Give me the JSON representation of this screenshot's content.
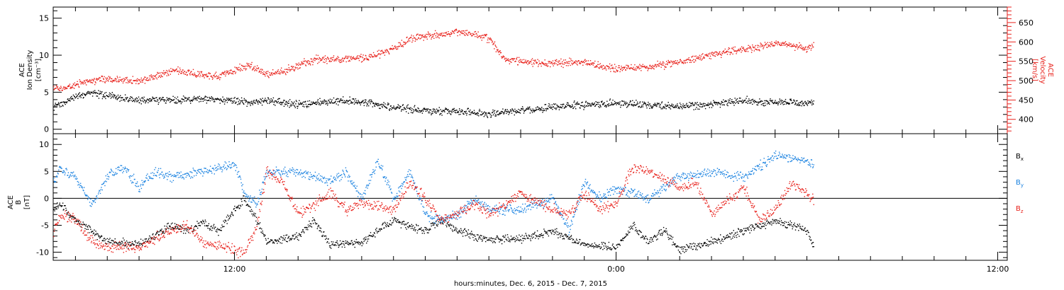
{
  "xaxis": {
    "caption": "hours:minutes, Dec.  6, 2015 - Dec.  7, 2015",
    "start_hour": 6.3,
    "end_hour": 36.3,
    "data_end_hour": 30.2,
    "labeled_ticks": [
      {
        "hour": 12,
        "label": "12:00"
      },
      {
        "hour": 24,
        "label": "0:00"
      },
      {
        "hour": 36,
        "label": "12:00"
      }
    ]
  },
  "colors": {
    "black": "#000000",
    "red": "#e8221c",
    "blue": "#1a82e0"
  },
  "chart_data": [
    {
      "type": "scatter",
      "panel": "top",
      "ylabel_left": [
        "ACE",
        "Ion Density",
        "[cm⁻³]"
      ],
      "ylabel_right": [
        "ACE",
        "Velocity",
        "[km/s]"
      ],
      "ylim_left": [
        -0.6,
        16.5
      ],
      "yticks_left": [
        "0",
        "5",
        "10",
        "15"
      ],
      "ylim_right": [
        363,
        690
      ],
      "yticks_right": [
        "400",
        "450",
        "500",
        "550",
        "600",
        "650"
      ],
      "series": [
        {
          "axis": "left",
          "color": "#000000",
          "points": [
            [
              6.3,
              3.0
            ],
            [
              6.6,
              3.6
            ],
            [
              7.0,
              4.5
            ],
            [
              7.5,
              5.0
            ],
            [
              8.0,
              4.6
            ],
            [
              8.5,
              4.2
            ],
            [
              9.0,
              4.0
            ],
            [
              10.0,
              4.0
            ],
            [
              11.0,
              4.2
            ],
            [
              12.0,
              3.9
            ],
            [
              12.5,
              3.6
            ],
            [
              13.0,
              4.0
            ],
            [
              13.5,
              3.6
            ],
            [
              14.0,
              3.4
            ],
            [
              15.0,
              3.8
            ],
            [
              16.0,
              3.8
            ],
            [
              17.0,
              3.0
            ],
            [
              18.0,
              2.6
            ],
            [
              19.0,
              2.5
            ],
            [
              20.0,
              2.1
            ],
            [
              21.0,
              2.6
            ],
            [
              22.0,
              3.1
            ],
            [
              23.0,
              3.3
            ],
            [
              24.0,
              3.6
            ],
            [
              25.0,
              3.4
            ],
            [
              26.0,
              3.2
            ],
            [
              27.0,
              3.4
            ],
            [
              28.0,
              3.9
            ],
            [
              29.0,
              3.7
            ],
            [
              30.0,
              3.5
            ],
            [
              30.2,
              3.8
            ]
          ]
        },
        {
          "axis": "right",
          "color": "#e8221c",
          "points": [
            [
              6.3,
              480
            ],
            [
              6.6,
              480
            ],
            [
              7.0,
              492
            ],
            [
              7.5,
              500
            ],
            [
              8.0,
              505
            ],
            [
              8.5,
              502
            ],
            [
              9.0,
              500
            ],
            [
              9.5,
              510
            ],
            [
              10.0,
              528
            ],
            [
              10.5,
              523
            ],
            [
              11.0,
              516
            ],
            [
              11.5,
              512
            ],
            [
              12.0,
              528
            ],
            [
              12.5,
              540
            ],
            [
              13.0,
              518
            ],
            [
              13.5,
              525
            ],
            [
              14.0,
              540
            ],
            [
              14.5,
              556
            ],
            [
              15.0,
              555
            ],
            [
              16.0,
              560
            ],
            [
              16.5,
              568
            ],
            [
              17.0,
              585
            ],
            [
              17.5,
              608
            ],
            [
              18.0,
              618
            ],
            [
              18.5,
              620
            ],
            [
              19.0,
              628
            ],
            [
              19.5,
              620
            ],
            [
              20.0,
              610
            ],
            [
              20.5,
              555
            ],
            [
              21.0,
              550
            ],
            [
              22.0,
              545
            ],
            [
              23.0,
              550
            ],
            [
              24.0,
              530
            ],
            [
              25.0,
              538
            ],
            [
              26.0,
              548
            ],
            [
              27.0,
              570
            ],
            [
              28.0,
              580
            ],
            [
              29.0,
              598
            ],
            [
              30.0,
              585
            ],
            [
              30.2,
              590
            ]
          ]
        }
      ]
    },
    {
      "type": "scatter",
      "panel": "bottom",
      "ylabel_left": [
        "ACE",
        "B",
        "[nT]"
      ],
      "ylim": [
        -11.5,
        12
      ],
      "yticks": [
        "-10",
        "-5",
        "0",
        "5",
        "10"
      ],
      "legend": [
        {
          "label": "Bx",
          "color": "#000000"
        },
        {
          "label": "By",
          "color": "#1a82e0"
        },
        {
          "label": "Bz",
          "color": "#e8221c"
        }
      ],
      "series": [
        {
          "name": "Bx",
          "color": "#000000",
          "points": [
            [
              6.3,
              -2
            ],
            [
              6.5,
              -1
            ],
            [
              7.0,
              -4
            ],
            [
              7.5,
              -6
            ],
            [
              8.0,
              -8
            ],
            [
              9.0,
              -8.5
            ],
            [
              10.0,
              -5
            ],
            [
              10.5,
              -6
            ],
            [
              11.0,
              -4.5
            ],
            [
              11.5,
              -6
            ],
            [
              12.0,
              -2
            ],
            [
              12.3,
              0
            ],
            [
              12.7,
              -4
            ],
            [
              13.0,
              -8
            ],
            [
              14.0,
              -7
            ],
            [
              14.5,
              -4
            ],
            [
              15.0,
              -8.5
            ],
            [
              16.0,
              -8
            ],
            [
              17.0,
              -4
            ],
            [
              18.0,
              -6
            ],
            [
              18.5,
              -4
            ],
            [
              19.0,
              -6
            ],
            [
              20.0,
              -7.5
            ],
            [
              21.0,
              -7.5
            ],
            [
              22.0,
              -6
            ],
            [
              23.0,
              -8.5
            ],
            [
              24.0,
              -9
            ],
            [
              24.5,
              -5
            ],
            [
              25.0,
              -8
            ],
            [
              25.5,
              -6
            ],
            [
              26.0,
              -9.5
            ],
            [
              27.0,
              -8
            ],
            [
              28.0,
              -6
            ],
            [
              29.0,
              -4
            ],
            [
              29.5,
              -5
            ],
            [
              30.0,
              -6
            ],
            [
              30.2,
              -9
            ]
          ]
        },
        {
          "name": "By",
          "color": "#1a82e0",
          "points": [
            [
              6.3,
              3
            ],
            [
              6.5,
              5.5
            ],
            [
              7.0,
              4
            ],
            [
              7.5,
              -1
            ],
            [
              8.0,
              4
            ],
            [
              8.5,
              6
            ],
            [
              9.0,
              2
            ],
            [
              9.5,
              5
            ],
            [
              10.0,
              4
            ],
            [
              11.0,
              5
            ],
            [
              12.0,
              6.5
            ],
            [
              12.3,
              1
            ],
            [
              12.7,
              -1
            ],
            [
              13.0,
              5
            ],
            [
              14.0,
              5
            ],
            [
              15.0,
              3
            ],
            [
              15.5,
              5
            ],
            [
              16.0,
              0
            ],
            [
              16.5,
              7
            ],
            [
              17.0,
              0
            ],
            [
              17.5,
              5
            ],
            [
              18.0,
              -3
            ],
            [
              18.5,
              -4
            ],
            [
              19.0,
              -3
            ],
            [
              19.5,
              0
            ],
            [
              20.0,
              -2
            ],
            [
              21.0,
              -2
            ],
            [
              22.0,
              0
            ],
            [
              22.5,
              -6
            ],
            [
              23.0,
              3
            ],
            [
              23.5,
              0
            ],
            [
              24.0,
              2
            ],
            [
              25.0,
              0
            ],
            [
              26.0,
              4
            ],
            [
              27.0,
              5
            ],
            [
              28.0,
              4
            ],
            [
              29.0,
              8
            ],
            [
              30.0,
              7
            ],
            [
              30.2,
              6
            ]
          ]
        },
        {
          "name": "Bz",
          "color": "#e8221c",
          "points": [
            [
              6.3,
              -6
            ],
            [
              6.5,
              -3
            ],
            [
              7.0,
              -4
            ],
            [
              7.5,
              -8
            ],
            [
              8.0,
              -9
            ],
            [
              9.0,
              -9
            ],
            [
              10.0,
              -6
            ],
            [
              10.5,
              -5
            ],
            [
              11.0,
              -8
            ],
            [
              12.0,
              -9.5
            ],
            [
              12.3,
              -10
            ],
            [
              12.7,
              -5
            ],
            [
              13.0,
              5
            ],
            [
              13.5,
              3
            ],
            [
              14.0,
              -3
            ],
            [
              15.0,
              1
            ],
            [
              15.5,
              -2
            ],
            [
              16.0,
              -1
            ],
            [
              17.0,
              -2
            ],
            [
              17.5,
              3
            ],
            [
              18.0,
              0
            ],
            [
              18.5,
              -4
            ],
            [
              19.0,
              -3
            ],
            [
              19.5,
              -1
            ],
            [
              20.0,
              -3
            ],
            [
              21.0,
              1
            ],
            [
              22.0,
              -2
            ],
            [
              22.5,
              -3
            ],
            [
              23.0,
              1
            ],
            [
              23.5,
              -2
            ],
            [
              24.0,
              -1
            ],
            [
              24.5,
              6
            ],
            [
              25.0,
              5
            ],
            [
              26.0,
              2
            ],
            [
              26.5,
              3
            ],
            [
              27.0,
              -3
            ],
            [
              28.0,
              2
            ],
            [
              28.5,
              -4
            ],
            [
              29.0,
              -2
            ],
            [
              29.5,
              3
            ],
            [
              30.0,
              1
            ],
            [
              30.2,
              0
            ]
          ]
        }
      ]
    }
  ]
}
